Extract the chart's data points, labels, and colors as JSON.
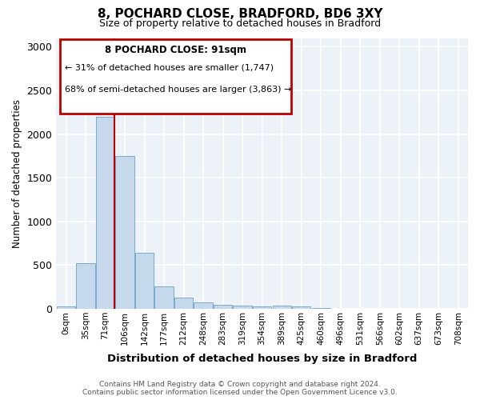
{
  "title": "8, POCHARD CLOSE, BRADFORD, BD6 3XY",
  "subtitle": "Size of property relative to detached houses in Bradford",
  "xlabel": "Distribution of detached houses by size in Bradford",
  "ylabel": "Number of detached properties",
  "bar_color": "#c5d8ec",
  "bar_edge_color": "#6ca0c8",
  "bg_color": "#edf2f9",
  "grid_color": "#ffffff",
  "categories": [
    "0sqm",
    "35sqm",
    "71sqm",
    "106sqm",
    "142sqm",
    "177sqm",
    "212sqm",
    "248sqm",
    "283sqm",
    "319sqm",
    "354sqm",
    "389sqm",
    "425sqm",
    "460sqm",
    "496sqm",
    "531sqm",
    "566sqm",
    "602sqm",
    "637sqm",
    "673sqm",
    "708sqm"
  ],
  "values": [
    30,
    520,
    2200,
    1750,
    640,
    260,
    130,
    75,
    45,
    35,
    30,
    40,
    30,
    5,
    3,
    2,
    1,
    1,
    1,
    0,
    0
  ],
  "ylim": [
    0,
    3100
  ],
  "yticks": [
    0,
    500,
    1000,
    1500,
    2000,
    2500,
    3000
  ],
  "marker_line_color": "#bb0000",
  "annotation_box_color": "#bb0000",
  "annotation_title": "8 POCHARD CLOSE: 91sqm",
  "annotation_line1": "← 31% of detached houses are smaller (1,747)",
  "annotation_line2": "68% of semi-detached houses are larger (3,863) →",
  "footer1": "Contains HM Land Registry data © Crown copyright and database right 2024.",
  "footer2": "Contains public sector information licensed under the Open Government Licence v3.0."
}
